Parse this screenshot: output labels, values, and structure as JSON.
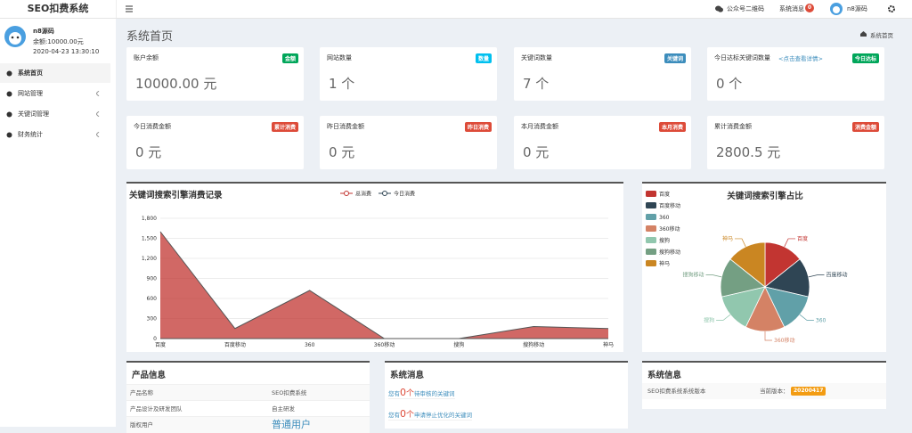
{
  "header": {
    "brand": "SEO扣费系统",
    "wechat": "公众号二维码",
    "messages": "系统消息",
    "message_count": "0",
    "user": "n8源码"
  },
  "sidebar": {
    "name": "n8源码",
    "balance": "余额:10000.00元",
    "time": "2020-04-23 13:30:10",
    "menu": [
      "系统首页",
      "网站管理",
      "关键词管理",
      "财务统计"
    ]
  },
  "page": {
    "title": "系统首页",
    "breadcrumb": "系统首页"
  },
  "cards": [
    {
      "title": "账户余额",
      "badge": "金额",
      "badge_color": "#00a65a",
      "value": "10000.00 元"
    },
    {
      "title": "网站数量",
      "badge": "数量",
      "badge_color": "#00c0ef",
      "value": "1 个"
    },
    {
      "title": "关键词数量",
      "badge": "关键词",
      "badge_color": "#3c8dbc",
      "value": "7 个"
    },
    {
      "title": "今日达标关键词数量",
      "link": "<点击查看详情>",
      "badge": "今日达标",
      "badge_color": "#00a65a",
      "value": "0 个"
    },
    {
      "title": "今日消费金额",
      "badge": "累计消费",
      "badge_color": "#dd4b39",
      "value": "0 元"
    },
    {
      "title": "昨日消费金额",
      "badge": "昨日消费",
      "badge_color": "#dd4b39",
      "value": "0 元"
    },
    {
      "title": "本月消费金额",
      "badge": "本月消费",
      "badge_color": "#dd4b39",
      "value": "0 元"
    },
    {
      "title": "累计消费金额",
      "badge": "消费金额",
      "badge_color": "#dd4b39",
      "value": "2800.5 元"
    }
  ],
  "chart_data": [
    {
      "type": "area",
      "title": "关键词搜索引擎消费记录",
      "categories": [
        "百度",
        "百度移动",
        "360",
        "360移动",
        "搜狗",
        "搜狗移动",
        "神马"
      ],
      "series": [
        {
          "name": "总消费",
          "color": "#c23531",
          "values": [
            1600,
            150,
            720,
            0,
            0,
            180,
            150
          ]
        },
        {
          "name": "今日消费",
          "color": "#2f4554",
          "values": [
            0,
            0,
            0,
            0,
            0,
            0,
            0
          ]
        }
      ],
      "ylim": [
        0,
        1800
      ],
      "yticks": [
        0,
        300,
        600,
        900,
        {
          "value": 1200,
          "label": "1,200"
        },
        {
          "value": 1500,
          "label": "1,500"
        },
        {
          "value": 1800,
          "label": "1,800"
        }
      ],
      "grid": true
    },
    {
      "type": "pie",
      "title": "关键词搜索引擎占比",
      "categories": [
        "百度",
        "百度移动",
        "360",
        "360移动",
        "搜狗",
        "搜狗移动",
        "神马"
      ],
      "values": [
        1,
        1,
        1,
        1,
        1,
        1,
        1
      ],
      "colors": [
        "#c23531",
        "#2f4554",
        "#61a0a8",
        "#d48265",
        "#91c7ae",
        "#749f83",
        "#ca8622"
      ]
    }
  ],
  "product": {
    "title": "产品信息",
    "rows": [
      [
        "产品名称",
        "SEO扣费系统"
      ],
      [
        "产品设计及研发团队",
        "自主研发"
      ],
      [
        "版权用户",
        "普通用户"
      ]
    ]
  },
  "notices": {
    "title": "系统消息",
    "items": [
      {
        "prefix": "您有",
        "count": "0",
        "unit": "个",
        "text": "待审核的关键词"
      },
      {
        "prefix": "您有",
        "count": "0",
        "unit": "个",
        "text": "申请停止优化的关键词"
      }
    ]
  },
  "sysinfo": {
    "title": "系统信息",
    "label": "SEO扣费系统系统版本",
    "current": "当前版本：",
    "version": "20200417"
  }
}
